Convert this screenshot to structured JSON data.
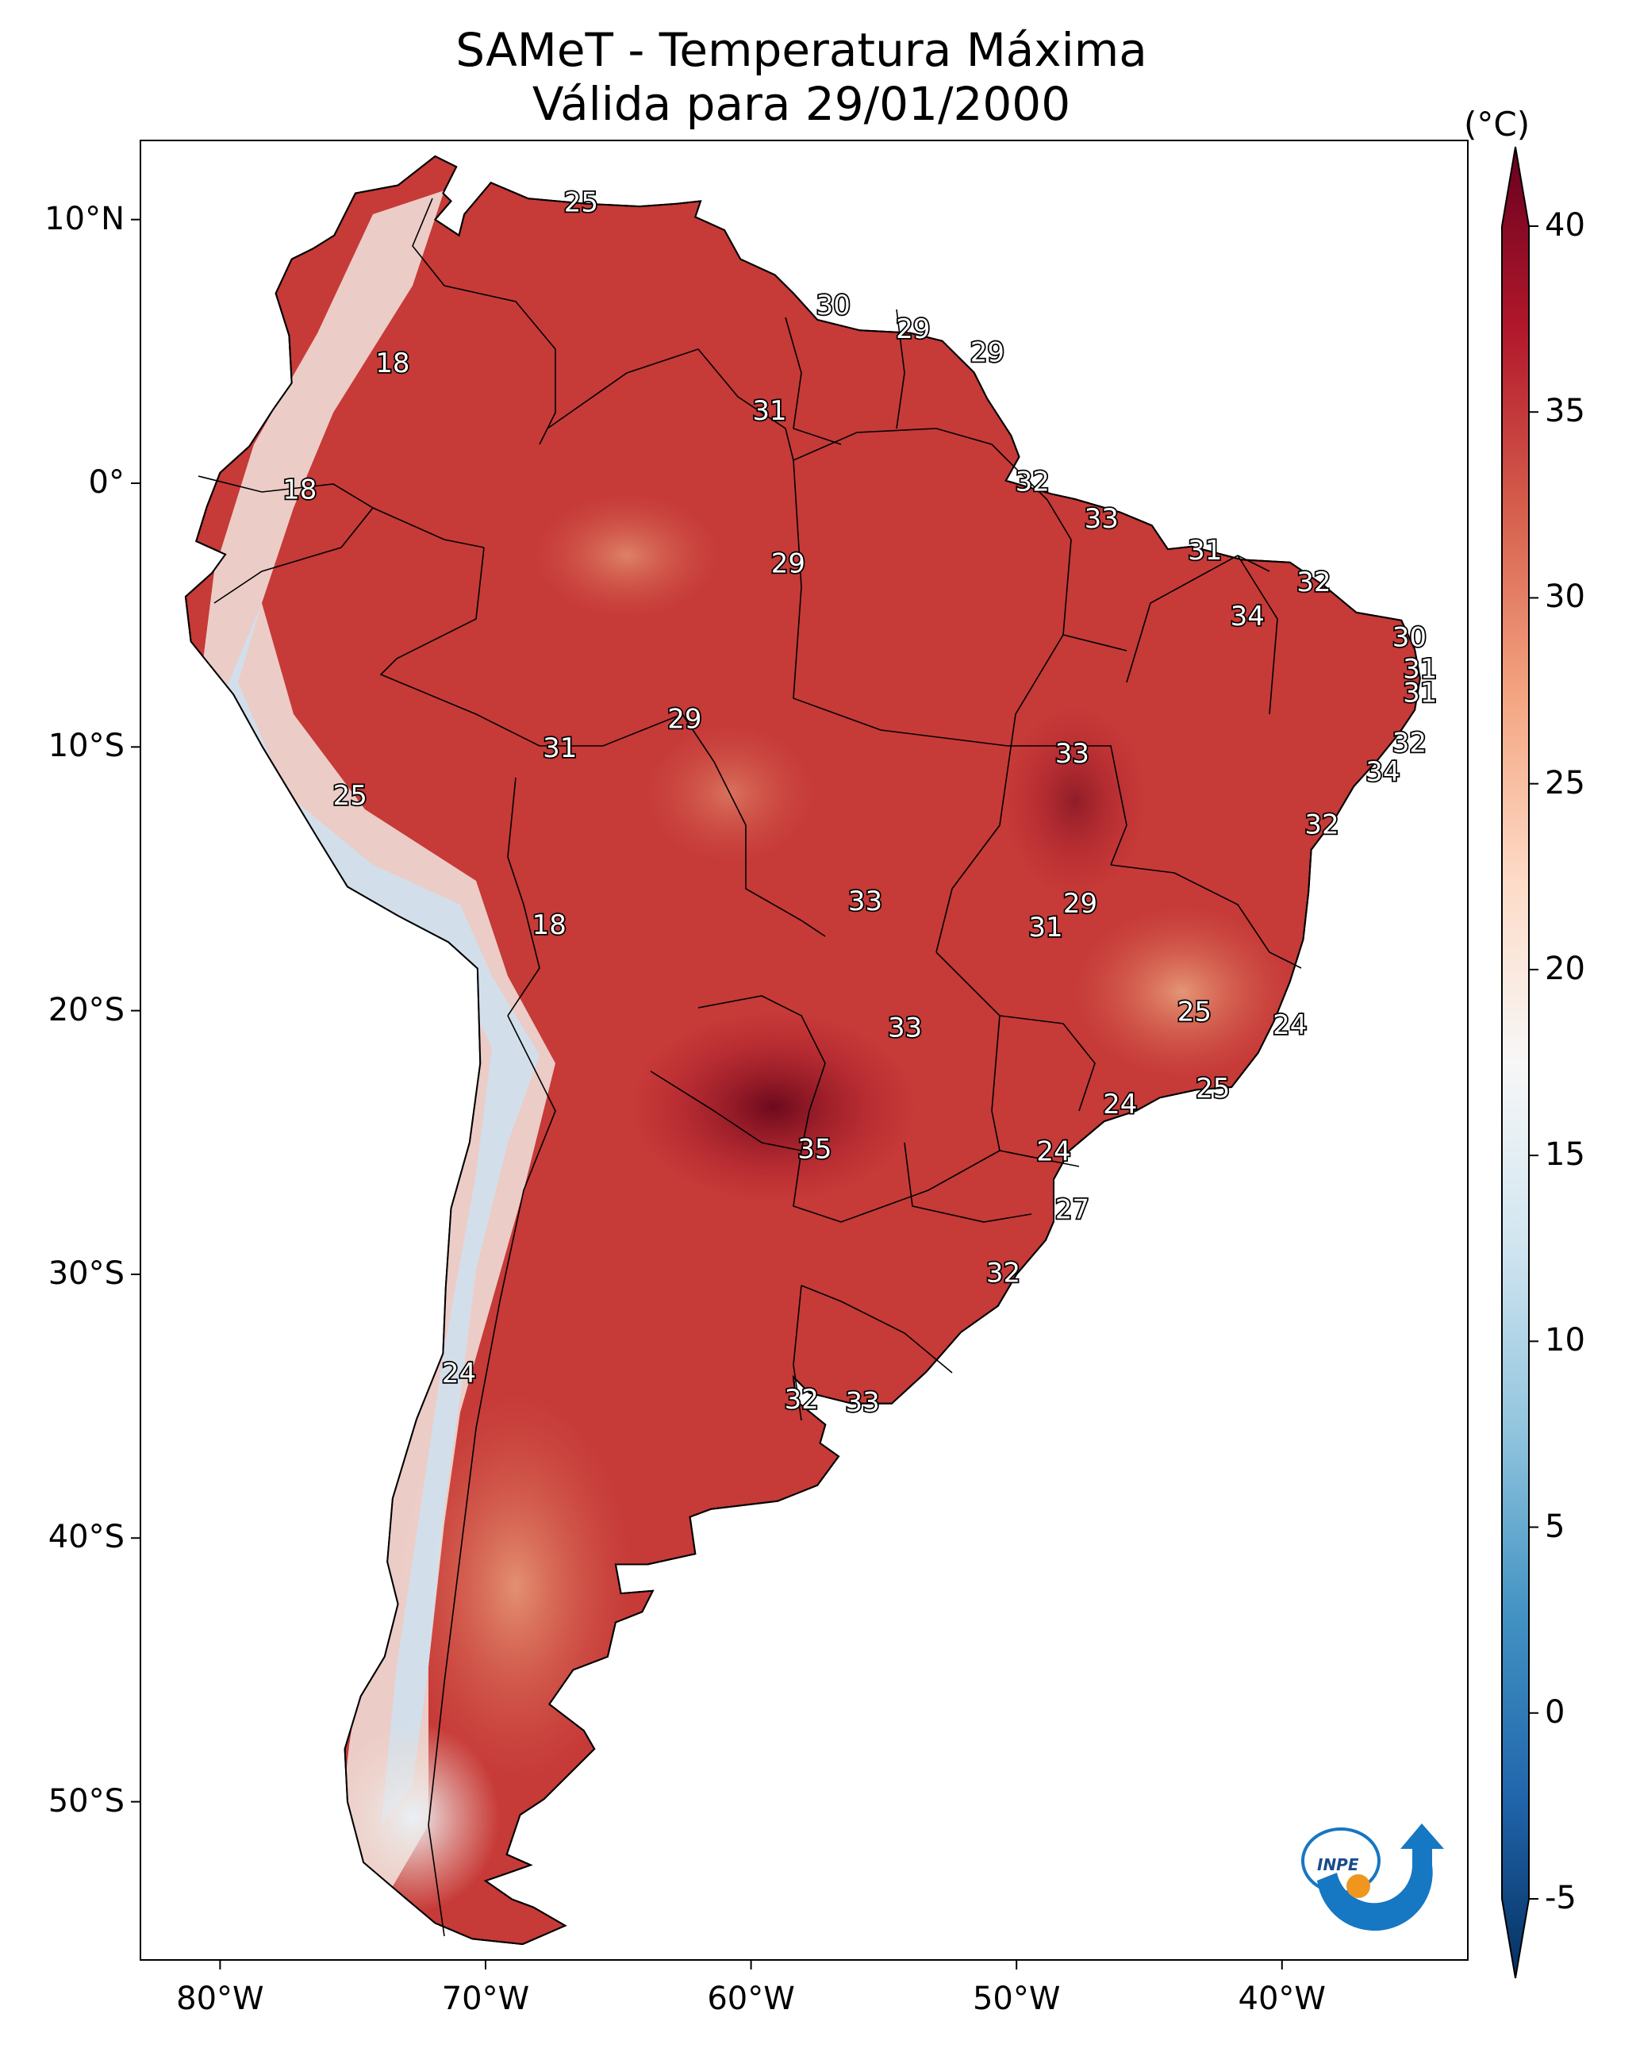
{
  "title": {
    "line1": "SAMeT - Temperatura Máxima",
    "line2": "Válida para 29/01/2000"
  },
  "map": {
    "lat_labels": [
      "10°N",
      "0°",
      "10°S",
      "20°S",
      "30°S",
      "40°S",
      "50°S"
    ],
    "lon_labels": [
      "80°W",
      "70°W",
      "60°W",
      "50°W",
      "40°W"
    ],
    "contour_labels": [
      {
        "text": "25",
        "lon": -66.4,
        "lat": 10.6
      },
      {
        "text": "30",
        "lon": -56.9,
        "lat": 6.7
      },
      {
        "text": "29",
        "lon": -53.9,
        "lat": 5.8
      },
      {
        "text": "29",
        "lon": -51.1,
        "lat": 4.9
      },
      {
        "text": "18",
        "lon": -73.5,
        "lat": 4.5
      },
      {
        "text": "31",
        "lon": -59.3,
        "lat": 2.7
      },
      {
        "text": "18",
        "lon": -77.0,
        "lat": -0.3
      },
      {
        "text": "32",
        "lon": -49.4,
        "lat": 0.0
      },
      {
        "text": "33",
        "lon": -46.8,
        "lat": -1.4
      },
      {
        "text": "31",
        "lon": -42.9,
        "lat": -2.6
      },
      {
        "text": "29",
        "lon": -58.6,
        "lat": -3.1
      },
      {
        "text": "32",
        "lon": -38.8,
        "lat": -3.8
      },
      {
        "text": "34",
        "lon": -41.3,
        "lat": -5.1
      },
      {
        "text": "30",
        "lon": -35.2,
        "lat": -5.9
      },
      {
        "text": "31",
        "lon": -34.8,
        "lat": -7.1
      },
      {
        "text": "31",
        "lon": -34.8,
        "lat": -8.0
      },
      {
        "text": "29",
        "lon": -62.5,
        "lat": -9.0
      },
      {
        "text": "31",
        "lon": -67.2,
        "lat": -10.1
      },
      {
        "text": "33",
        "lon": -47.9,
        "lat": -10.3
      },
      {
        "text": "32",
        "lon": -35.2,
        "lat": -9.9
      },
      {
        "text": "34",
        "lon": -36.2,
        "lat": -11.0
      },
      {
        "text": "25",
        "lon": -75.1,
        "lat": -11.9
      },
      {
        "text": "32",
        "lon": -38.5,
        "lat": -13.0
      },
      {
        "text": "33",
        "lon": -55.7,
        "lat": -15.9
      },
      {
        "text": "29",
        "lon": -47.6,
        "lat": -16.0
      },
      {
        "text": "31",
        "lon": -48.9,
        "lat": -16.9
      },
      {
        "text": "18",
        "lon": -67.6,
        "lat": -16.8
      },
      {
        "text": "25",
        "lon": -43.3,
        "lat": -20.1
      },
      {
        "text": "24",
        "lon": -39.7,
        "lat": -20.6
      },
      {
        "text": "33",
        "lon": -54.2,
        "lat": -20.7
      },
      {
        "text": "25",
        "lon": -42.6,
        "lat": -23.0
      },
      {
        "text": "24",
        "lon": -46.1,
        "lat": -23.6
      },
      {
        "text": "35",
        "lon": -57.6,
        "lat": -25.3
      },
      {
        "text": "24",
        "lon": -48.6,
        "lat": -25.4
      },
      {
        "text": "27",
        "lon": -47.9,
        "lat": -27.6
      },
      {
        "text": "32",
        "lon": -50.5,
        "lat": -30.0
      },
      {
        "text": "24",
        "lon": -71.0,
        "lat": -33.8
      },
      {
        "text": "32",
        "lon": -58.1,
        "lat": -34.8
      },
      {
        "text": "33",
        "lon": -55.8,
        "lat": -34.9
      }
    ]
  },
  "colorbar": {
    "unit": "(°C)",
    "tick_labels": [
      "40",
      "35",
      "30",
      "25",
      "20",
      "15",
      "10",
      "5",
      "0",
      "-5"
    ],
    "vmin": -5,
    "vmax": 40,
    "colors": [
      "#053061",
      "#2166ac",
      "#4393c3",
      "#92c5de",
      "#d1e5f0",
      "#f7f7f7",
      "#fddbc7",
      "#f4a582",
      "#d6604d",
      "#b2182b",
      "#67001f"
    ]
  },
  "logo": {
    "text": "INPE",
    "colors": {
      "blue": "#1677c3",
      "orange": "#f0961e"
    }
  }
}
